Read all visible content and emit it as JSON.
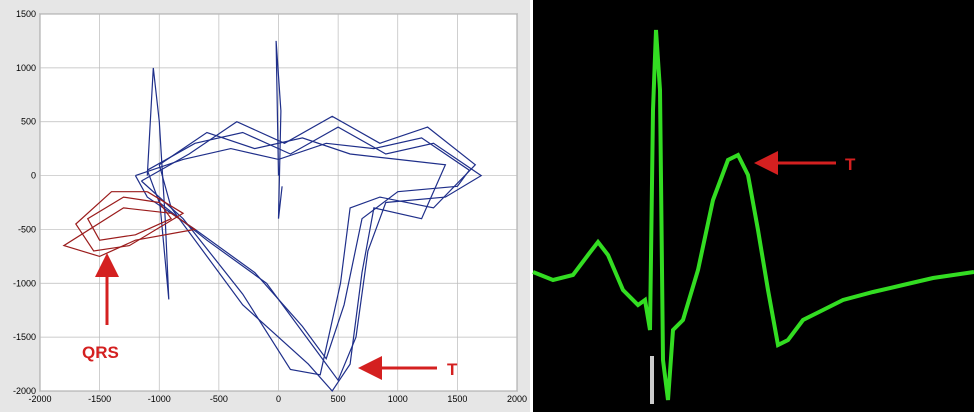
{
  "chart_data": [
    {
      "type": "line",
      "grid": true,
      "xlim": [
        -2000,
        2000
      ],
      "ylim": [
        -2000,
        1500
      ],
      "xticks": [
        -2000,
        -1500,
        -1000,
        -500,
        0,
        500,
        1000,
        1500,
        2000
      ],
      "yticks": [
        -2000,
        -1500,
        -1000,
        -500,
        0,
        500,
        1000,
        1500
      ],
      "series": [
        {
          "color": "#1f2f8a",
          "x": [
            -1200,
            -800,
            -400,
            0,
            400,
            800,
            1200,
            1600,
            1500,
            1000,
            700,
            550,
            400,
            200,
            -200,
            -700,
            -1100,
            -1200
          ],
          "values": [
            0,
            150,
            250,
            150,
            300,
            250,
            350,
            50,
            -100,
            -150,
            -400,
            -1200,
            -1700,
            -1400,
            -900,
            -500,
            -200,
            0
          ]
        },
        {
          "color": "#1f2f8a",
          "x": [
            -1100,
            -700,
            -300,
            100,
            500,
            900,
            1300,
            1700,
            1400,
            900,
            750,
            650,
            500,
            300,
            -100,
            -600,
            -1000,
            -1100
          ],
          "values": [
            50,
            300,
            400,
            200,
            450,
            200,
            300,
            0,
            -200,
            -250,
            -700,
            -1500,
            -1900,
            -1600,
            -1000,
            -600,
            -250,
            50
          ]
        },
        {
          "color": "#1f2f8a",
          "x": [
            -1150,
            -750,
            -350,
            50,
            450,
            850,
            1250,
            1650,
            1300,
            850,
            600,
            520,
            350,
            100,
            -300,
            -800,
            -1150
          ],
          "values": [
            -50,
            200,
            500,
            300,
            550,
            300,
            450,
            100,
            -300,
            -200,
            -300,
            -1000,
            -1850,
            -1800,
            -1100,
            -400,
            -50
          ]
        },
        {
          "color": "#1f2f8a",
          "x": [
            -1000,
            -600,
            -200,
            200,
            600,
            1000,
            1400,
            1200,
            800,
            700,
            600,
            450,
            250,
            -300,
            -900,
            -1000
          ],
          "values": [
            100,
            400,
            250,
            350,
            200,
            150,
            100,
            -400,
            -300,
            -900,
            -1750,
            -2000,
            -1750,
            -1200,
            -300,
            100
          ]
        },
        {
          "color": "#1f2f8a",
          "x": [
            -1100,
            -1050,
            -1000,
            -950,
            -920,
            -1000
          ],
          "values": [
            0,
            1000,
            500,
            -400,
            -1150,
            -200
          ]
        },
        {
          "color": "#1f2f8a",
          "x": [
            0,
            -20,
            20,
            0,
            30
          ],
          "values": [
            0,
            1250,
            600,
            -400,
            -100
          ]
        },
        {
          "color": "#9b1c1c",
          "x": [
            -1000,
            -1300,
            -1600,
            -1500,
            -1200,
            -900,
            -1000
          ],
          "values": [
            -250,
            -200,
            -400,
            -600,
            -550,
            -400,
            -250
          ]
        },
        {
          "color": "#9b1c1c",
          "x": [
            -1100,
            -1400,
            -1700,
            -1550,
            -1250,
            -800,
            -1100
          ],
          "values": [
            -150,
            -150,
            -450,
            -700,
            -650,
            -350,
            -150
          ]
        },
        {
          "color": "#9b1c1c",
          "x": [
            -900,
            -1300,
            -1800,
            -1500,
            -1200,
            -700,
            -900
          ],
          "values": [
            -350,
            -300,
            -650,
            -750,
            -600,
            -500,
            -350
          ]
        }
      ],
      "annotations": [
        {
          "text": "QRS"
        },
        {
          "text": "T"
        }
      ]
    },
    {
      "type": "line",
      "background": "#000000",
      "xlim": [
        0,
        441
      ],
      "ylim": [
        0,
        412
      ],
      "series": [
        {
          "color": "#33dd22",
          "x": [
            0,
            20,
            40,
            55,
            65,
            75,
            90,
            105,
            112,
            117,
            120,
            123,
            127,
            130,
            135,
            140,
            150,
            165,
            180,
            195,
            205,
            215,
            225,
            235,
            245,
            255,
            270,
            290,
            310,
            340,
            370,
            400,
            441
          ],
          "values": [
            140,
            132,
            137,
            157,
            170,
            157,
            122,
            107,
            112,
            82,
            302,
            382,
            322,
            52,
            12,
            82,
            92,
            142,
            212,
            252,
            257,
            237,
            182,
            122,
            67,
            72,
            92,
            102,
            112,
            120,
            127,
            134,
            140
          ]
        }
      ],
      "annotations": [
        {
          "text": "T"
        }
      ]
    }
  ]
}
